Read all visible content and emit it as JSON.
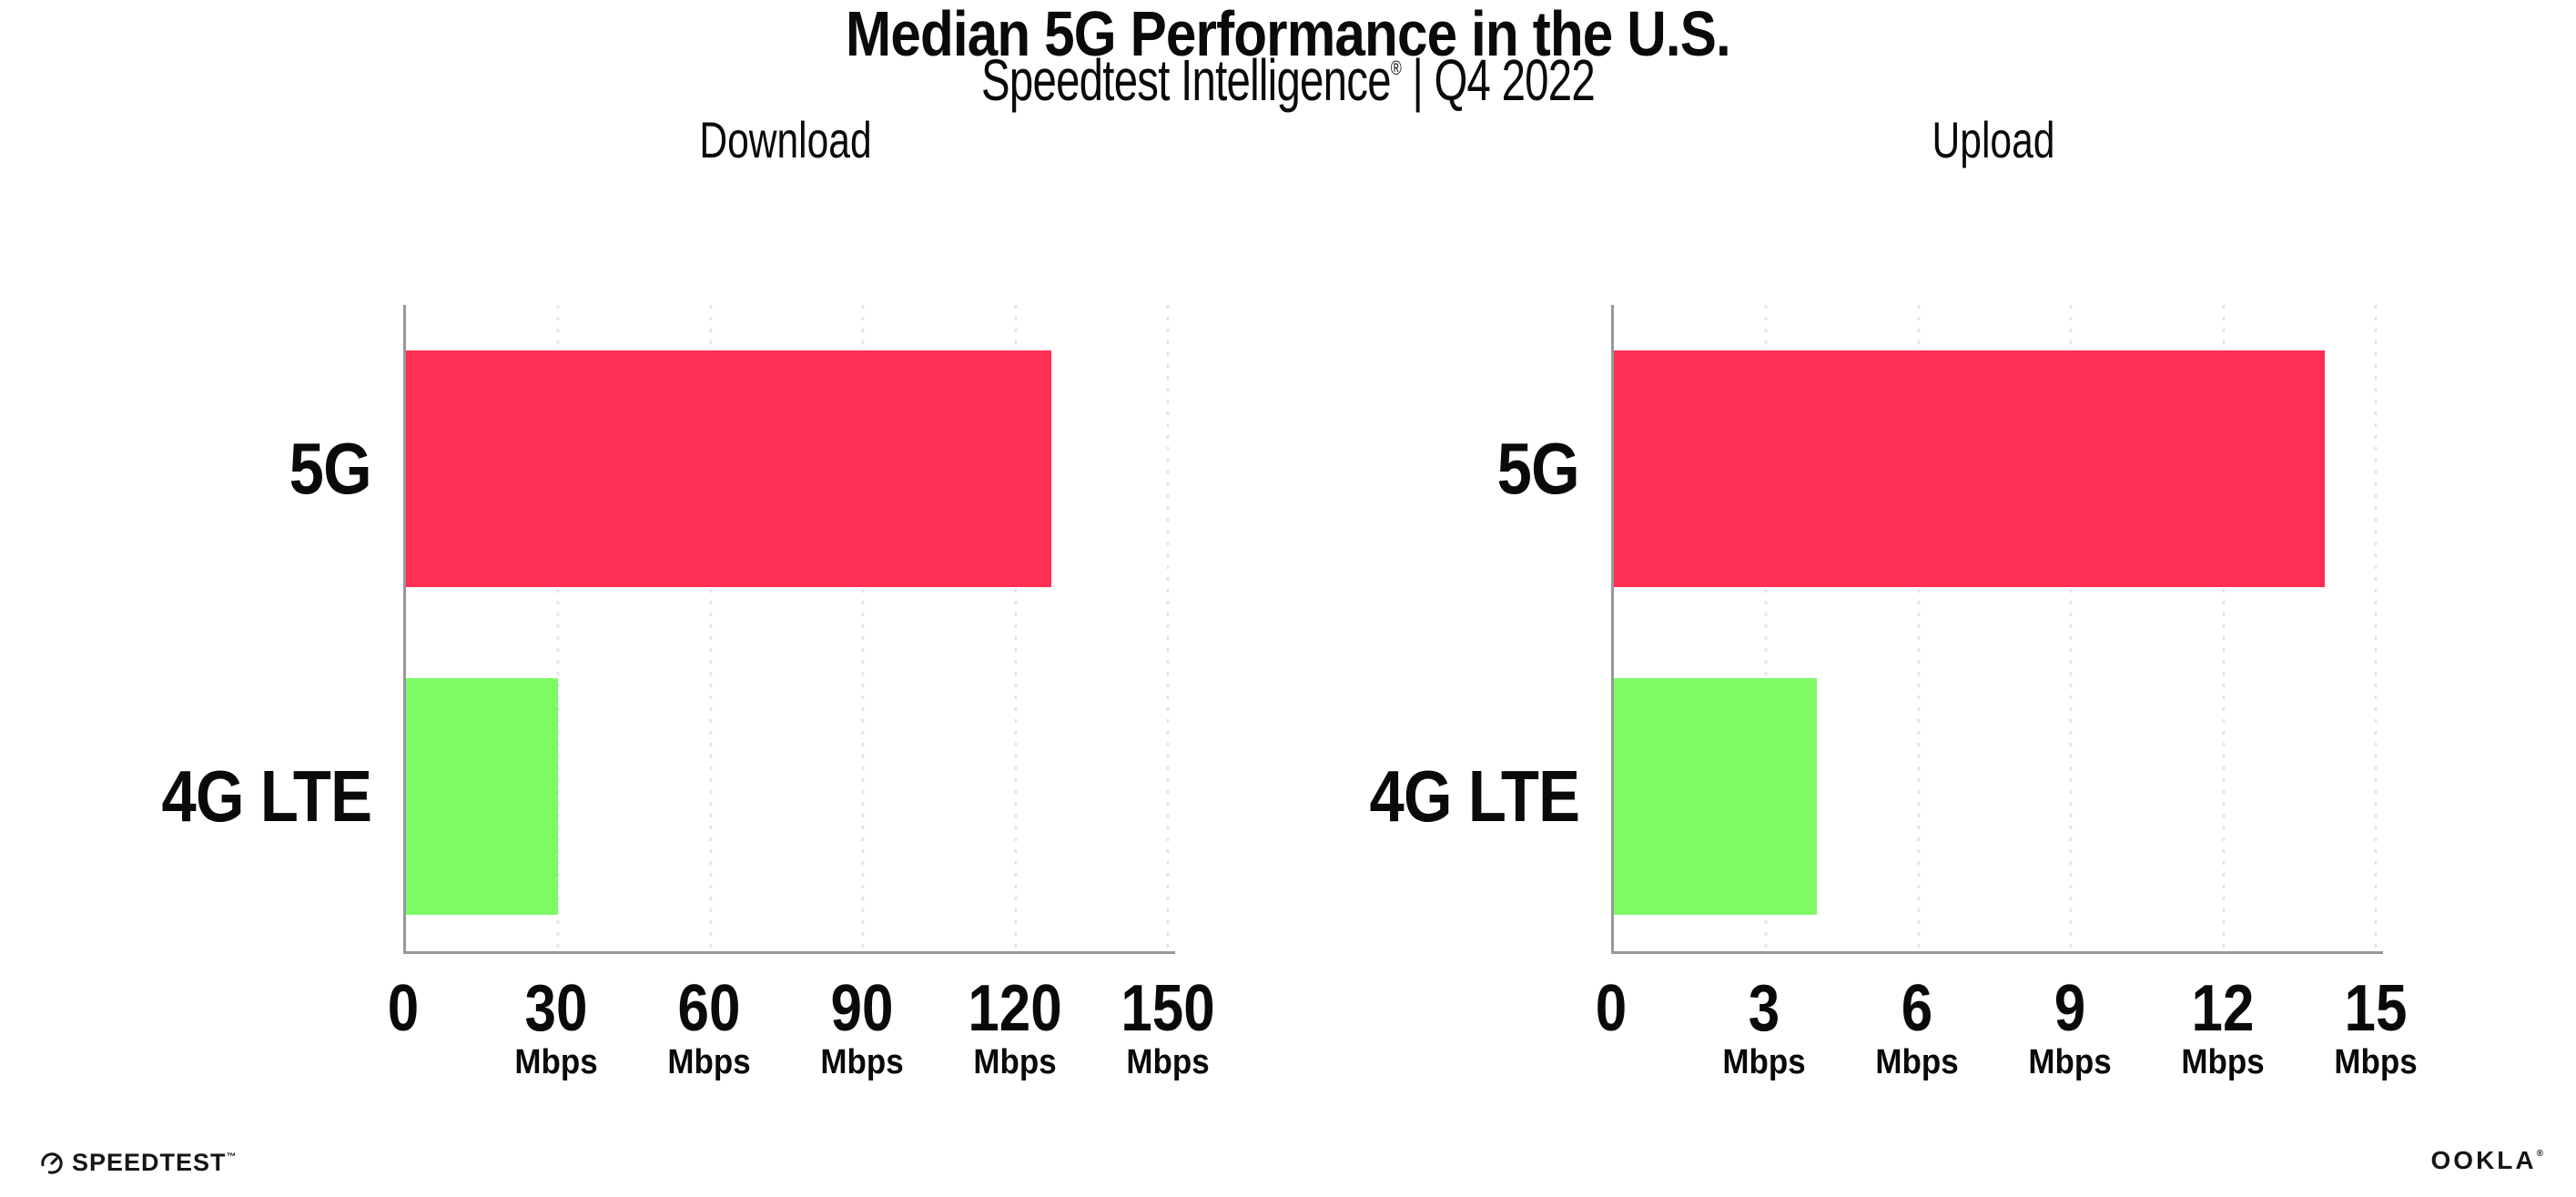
{
  "header": {
    "title": "Median 5G Performance in the U.S.",
    "subtitle_brand": "Speedtest Intelligence",
    "subtitle_reg": "®",
    "subtitle_rest": " | Q4 2022"
  },
  "colors": {
    "bar_5g": "#FF2E55",
    "bar_4g_lte": "#7EFB64",
    "axis_line": "#97979E",
    "gridline": "#E4E4EE",
    "text": "#0A0A0A"
  },
  "chart_data": [
    {
      "type": "bar",
      "orientation": "horizontal",
      "title": "Download",
      "categories": [
        "5G",
        "4G LTE"
      ],
      "values": [
        127,
        30
      ],
      "colors": [
        "#FF2E55",
        "#7EFB64"
      ],
      "unit": "Mbps",
      "xlim": [
        0,
        150
      ],
      "xticks": [
        0,
        30,
        60,
        90,
        120,
        150
      ],
      "tick_unit_label": "Mbps",
      "grid": "vertical-dotted",
      "legend": "none"
    },
    {
      "type": "bar",
      "orientation": "horizontal",
      "title": "Upload",
      "categories": [
        "5G",
        "4G LTE"
      ],
      "values": [
        14,
        4
      ],
      "colors": [
        "#FF2E55",
        "#7EFB64"
      ],
      "unit": "Mbps",
      "xlim": [
        0,
        15
      ],
      "xticks": [
        0,
        3,
        6,
        9,
        12,
        15
      ],
      "tick_unit_label": "Mbps",
      "grid": "vertical-dotted",
      "legend": "none"
    }
  ],
  "footer": {
    "speedtest_label": "SPEEDTEST",
    "speedtest_tm": "™",
    "ookla_label": "OOKLA",
    "ookla_reg": "®"
  }
}
